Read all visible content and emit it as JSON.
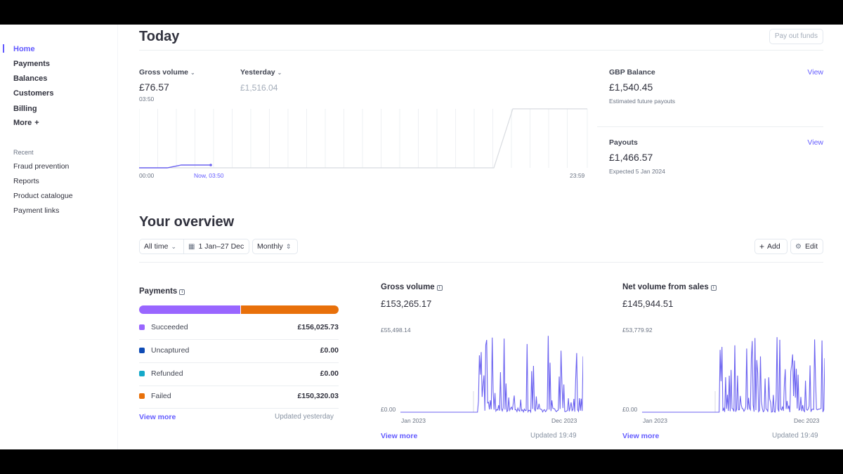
{
  "sidebar": {
    "nav": [
      "Home",
      "Payments",
      "Balances",
      "Customers",
      "Billing",
      "More"
    ],
    "more_symbol": "+",
    "recent_title": "Recent",
    "recent": [
      "Fraud prevention",
      "Reports",
      "Product catalogue",
      "Payment links"
    ]
  },
  "today": {
    "title": "Today",
    "payout_button": "Pay out funds",
    "gross_label": "Gross volume",
    "gross_value": "£76.57",
    "gross_time": "03:50",
    "yesterday_label": "Yesterday",
    "yesterday_value": "£1,516.04",
    "axis_start": "00:00",
    "axis_now": "Now, 03:50",
    "axis_end": "23:59",
    "balance_label": "GBP Balance",
    "balance_value": "£1,540.45",
    "balance_sub": "Estimated future payouts",
    "payouts_label": "Payouts",
    "payouts_value": "£1,466.57",
    "payouts_sub": "Expected 5 Jan 2024",
    "view_label": "View"
  },
  "overview": {
    "title": "Your overview",
    "range_select": "All time",
    "date_range": "1 Jan–27 Dec",
    "interval": "Monthly",
    "add_label": "Add",
    "edit_label": "Edit"
  },
  "payments_card": {
    "title": "Payments",
    "rows": [
      {
        "label": "Succeeded",
        "amount": "£156,025.73",
        "color": "#9966ff"
      },
      {
        "label": "Uncaptured",
        "amount": "£0.00",
        "color": "#0e4bb5"
      },
      {
        "label": "Refunded",
        "amount": "£0.00",
        "color": "#15a9c9"
      },
      {
        "label": "Failed",
        "amount": "£150,320.03",
        "color": "#e8700a"
      }
    ],
    "bar_split": [
      0.51,
      0.49
    ],
    "view_more": "View more",
    "updated": "Updated yesterday"
  },
  "gross_card": {
    "title": "Gross volume",
    "value": "£153,265.17",
    "y_max": "£55,498.14",
    "y_min": "£0.00",
    "x_start": "Jan 2023",
    "x_end": "Dec 2023",
    "view_more": "View more",
    "updated": "Updated 19:49"
  },
  "net_card": {
    "title": "Net volume from sales",
    "value": "£145,944.51",
    "y_max": "£53,779.92",
    "y_min": "£0.00",
    "x_start": "Jan 2023",
    "x_end": "Dec 2023",
    "view_more": "View more",
    "updated": "Updated 19:49"
  },
  "colors": {
    "accent": "#635bff",
    "line": "#6c63f0",
    "yesterday_line": "#d8dbe0"
  }
}
